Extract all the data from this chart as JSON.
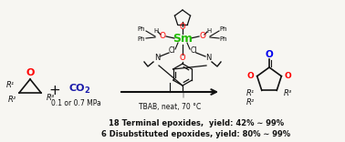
{
  "bg_color": "#f7f6f2",
  "sm_color": "#22bb00",
  "o_red": "#ff0000",
  "o_blue": "#0000ee",
  "n_color": "#111111",
  "text_color": "#111111",
  "co2_color": "#1a1aaa",
  "yield1": "18 Terminal epoxides,  yield: 42% ∼ 99%",
  "yield2": "6 Disubstituted epoxides, yield: 80% ∼ 99%",
  "catalyst": "TBAB, neat, 70 °C",
  "pressure": "0.1 or 0.7 MPa"
}
